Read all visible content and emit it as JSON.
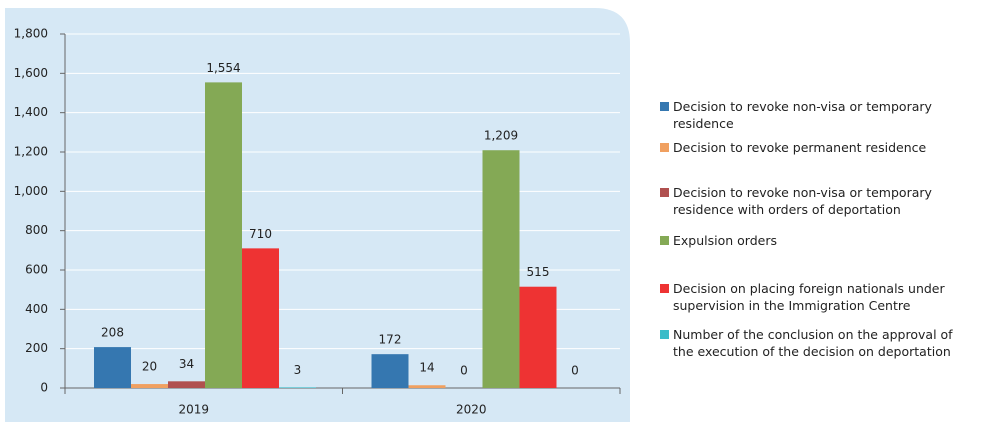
{
  "chart_data": {
    "type": "bar",
    "categories": [
      "2019",
      "2020"
    ],
    "series": [
      {
        "name": "Decision to revoke non-visa or temporary residence",
        "color": "#3577b0",
        "values": [
          208,
          172
        ]
      },
      {
        "name": "Decision to revoke permanent residence",
        "color": "#f0a060",
        "values": [
          20,
          14
        ]
      },
      {
        "name": "Decision to revoke non-visa or temporary residence with orders of deportation",
        "color": "#b0504f",
        "values": [
          34,
          0
        ]
      },
      {
        "name": "Expulsion orders",
        "color": "#84a955",
        "values": [
          1554,
          1209
        ],
        "value_labels": [
          "1,554",
          "1,209"
        ]
      },
      {
        "name": "Decision on placing foreign nationals under supervision in the Immigration Centre",
        "color": "#ee3333",
        "values": [
          710,
          515
        ]
      },
      {
        "name": "Number of the conclusion on the approval of the execution of the decision on deportation",
        "color": "#3bbcc8",
        "values": [
          3,
          0
        ]
      }
    ],
    "ylim": [
      0,
      1800
    ],
    "yticks": [
      0,
      200,
      400,
      600,
      800,
      {
        "value": 1000,
        "label": "1,000"
      },
      {
        "value": 1200,
        "label": "1,200"
      },
      {
        "value": 1400,
        "label": "1,400"
      },
      {
        "value": 1600,
        "label": "1,600"
      },
      {
        "value": 1800,
        "label": "1,800"
      }
    ],
    "grid": true
  }
}
